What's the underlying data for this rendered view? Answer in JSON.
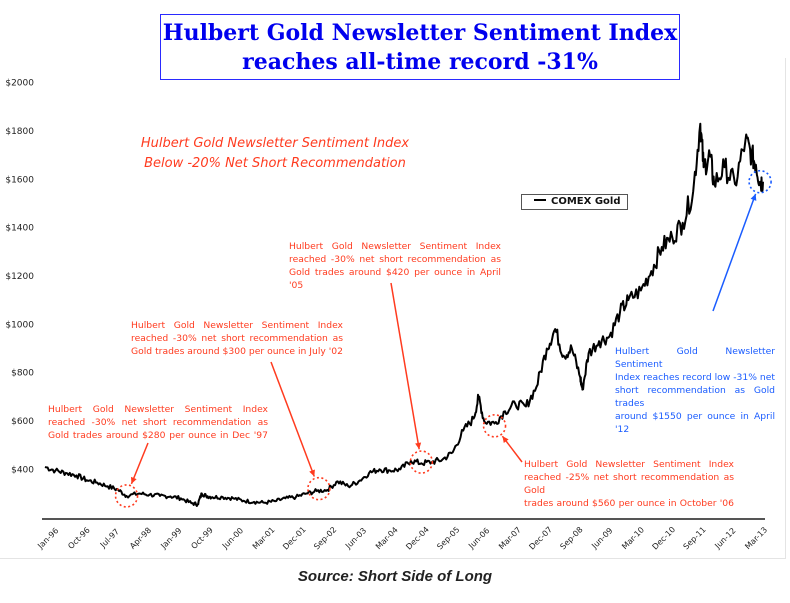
{
  "header": {
    "title_line1": "Hulbert Gold Newsletter Sentiment Index",
    "title_line2": "reaches all-time record -31%"
  },
  "subtitle": {
    "line1": "Hulbert Gold Newsletter Sentiment Index",
    "line2": "Below -20% Net Short Recommendation"
  },
  "legend": {
    "label": "COMEX Gold"
  },
  "source": "Source: Short Side of Long",
  "colors": {
    "annotation_red": "#ff3b1f",
    "annotation_blue": "#1a5cff",
    "title_blue": "#0000ee",
    "line": "#000000"
  },
  "annotations": [
    {
      "id": "dec97",
      "color": "red",
      "lines": [
        "Hulbert Gold Newsletter Sentiment Index",
        "reached -30% net short recommendation as",
        "Gold trades around $280 per ounce in Dec '97"
      ],
      "target": {
        "date": 1997.95,
        "price": 290
      }
    },
    {
      "id": "jul02",
      "color": "red",
      "lines": [
        "Hulbert Gold Newsletter Sentiment Index",
        "reached -30% net short recommendation as",
        "Gold trades around $300 per ounce in July '02"
      ],
      "target": {
        "date": 2002.55,
        "price": 320
      }
    },
    {
      "id": "apr05",
      "color": "red",
      "lines": [
        "Hulbert Gold Newsletter Sentiment Index",
        "reached -30% net short recommendation as",
        "Gold trades around $420 per ounce in April '05"
      ],
      "target": {
        "date": 2005.0,
        "price": 430
      }
    },
    {
      "id": "oct06",
      "color": "red",
      "lines": [
        "Hulbert Gold Newsletter Sentiment Index",
        "reached -25% net short recommendation as Gold",
        "trades around $560 per ounce in October '06"
      ],
      "target": {
        "date": 2006.75,
        "price": 580
      }
    },
    {
      "id": "apr12",
      "color": "blue",
      "lines": [
        "Hulbert Gold Newsletter Sentiment",
        "Index reaches record low -31% net",
        "short recommendation as Gold trades",
        "around $1550 per ounce in April '12"
      ],
      "target": {
        "date": 2013.1,
        "price": 1590
      }
    }
  ],
  "chart_data": {
    "type": "line",
    "title": "Hulbert Gold Newsletter Sentiment Index reaches all-time record -31%",
    "xlabel": "",
    "ylabel": "",
    "ylim": [
      0,
      2000
    ],
    "xlim": [
      1996.0,
      2013.17
    ],
    "grid": false,
    "legend": "upper-center-right",
    "y_ticks": [
      400,
      600,
      800,
      1000,
      1200,
      1400,
      1600,
      1800,
      2000
    ],
    "y_tick_labels": [
      "$400",
      "$600",
      "$800",
      "$1000",
      "$1200",
      "$1400",
      "$1600",
      "$1800",
      "$2000"
    ],
    "x_tick_labels": [
      "Jan-96",
      "Oct-96",
      "Jul-97",
      "Apr-98",
      "Jan-99",
      "Oct-99",
      "Jun-00",
      "Mar-01",
      "Dec-01",
      "Sep-02",
      "Jun-03",
      "Mar-04",
      "Dec-04",
      "Sep-05",
      "Jun-06",
      "Mar-07",
      "Dec-07",
      "Sep-08",
      "Jun-09",
      "Mar-10",
      "Dec-10",
      "Sep-11",
      "Jun-12",
      "Mar-13"
    ],
    "series": [
      {
        "name": "COMEX Gold",
        "x": [
          1996.0,
          1996.25,
          1996.5,
          1996.75,
          1997.0,
          1997.25,
          1997.5,
          1997.75,
          1997.95,
          1998.25,
          1998.5,
          1998.75,
          1999.0,
          1999.25,
          1999.5,
          1999.65,
          1999.75,
          1999.85,
          2000.0,
          2000.25,
          2000.5,
          2000.75,
          2001.0,
          2001.25,
          2001.5,
          2001.75,
          2002.0,
          2002.25,
          2002.5,
          2002.75,
          2003.0,
          2003.25,
          2003.5,
          2003.75,
          2004.0,
          2004.25,
          2004.5,
          2004.75,
          2005.0,
          2005.25,
          2005.5,
          2005.75,
          2006.0,
          2006.25,
          2006.37,
          2006.5,
          2006.75,
          2007.0,
          2007.25,
          2007.5,
          2007.75,
          2008.0,
          2008.2,
          2008.4,
          2008.6,
          2008.8,
          2008.85,
          2009.0,
          2009.25,
          2009.5,
          2009.75,
          2009.95,
          2010.25,
          2010.5,
          2010.75,
          2011.0,
          2011.25,
          2011.5,
          2011.67,
          2011.75,
          2011.9,
          2012.0,
          2012.25,
          2012.5,
          2012.75,
          2012.9,
          2013.0,
          2013.1,
          2013.17
        ],
        "values": [
          410,
          395,
          385,
          375,
          355,
          345,
          330,
          315,
          290,
          300,
          295,
          290,
          288,
          280,
          260,
          255,
          300,
          290,
          285,
          285,
          280,
          270,
          265,
          262,
          268,
          280,
          285,
          300,
          310,
          315,
          350,
          330,
          350,
          385,
          400,
          395,
          400,
          435,
          425,
          430,
          440,
          470,
          560,
          610,
          700,
          600,
          590,
          640,
          670,
          660,
          740,
          900,
          980,
          870,
          900,
          780,
          730,
          880,
          930,
          950,
          1050,
          1100,
          1140,
          1220,
          1320,
          1360,
          1420,
          1550,
          1830,
          1650,
          1700,
          1580,
          1650,
          1580,
          1760,
          1700,
          1660,
          1590,
          1590
        ]
      }
    ]
  }
}
